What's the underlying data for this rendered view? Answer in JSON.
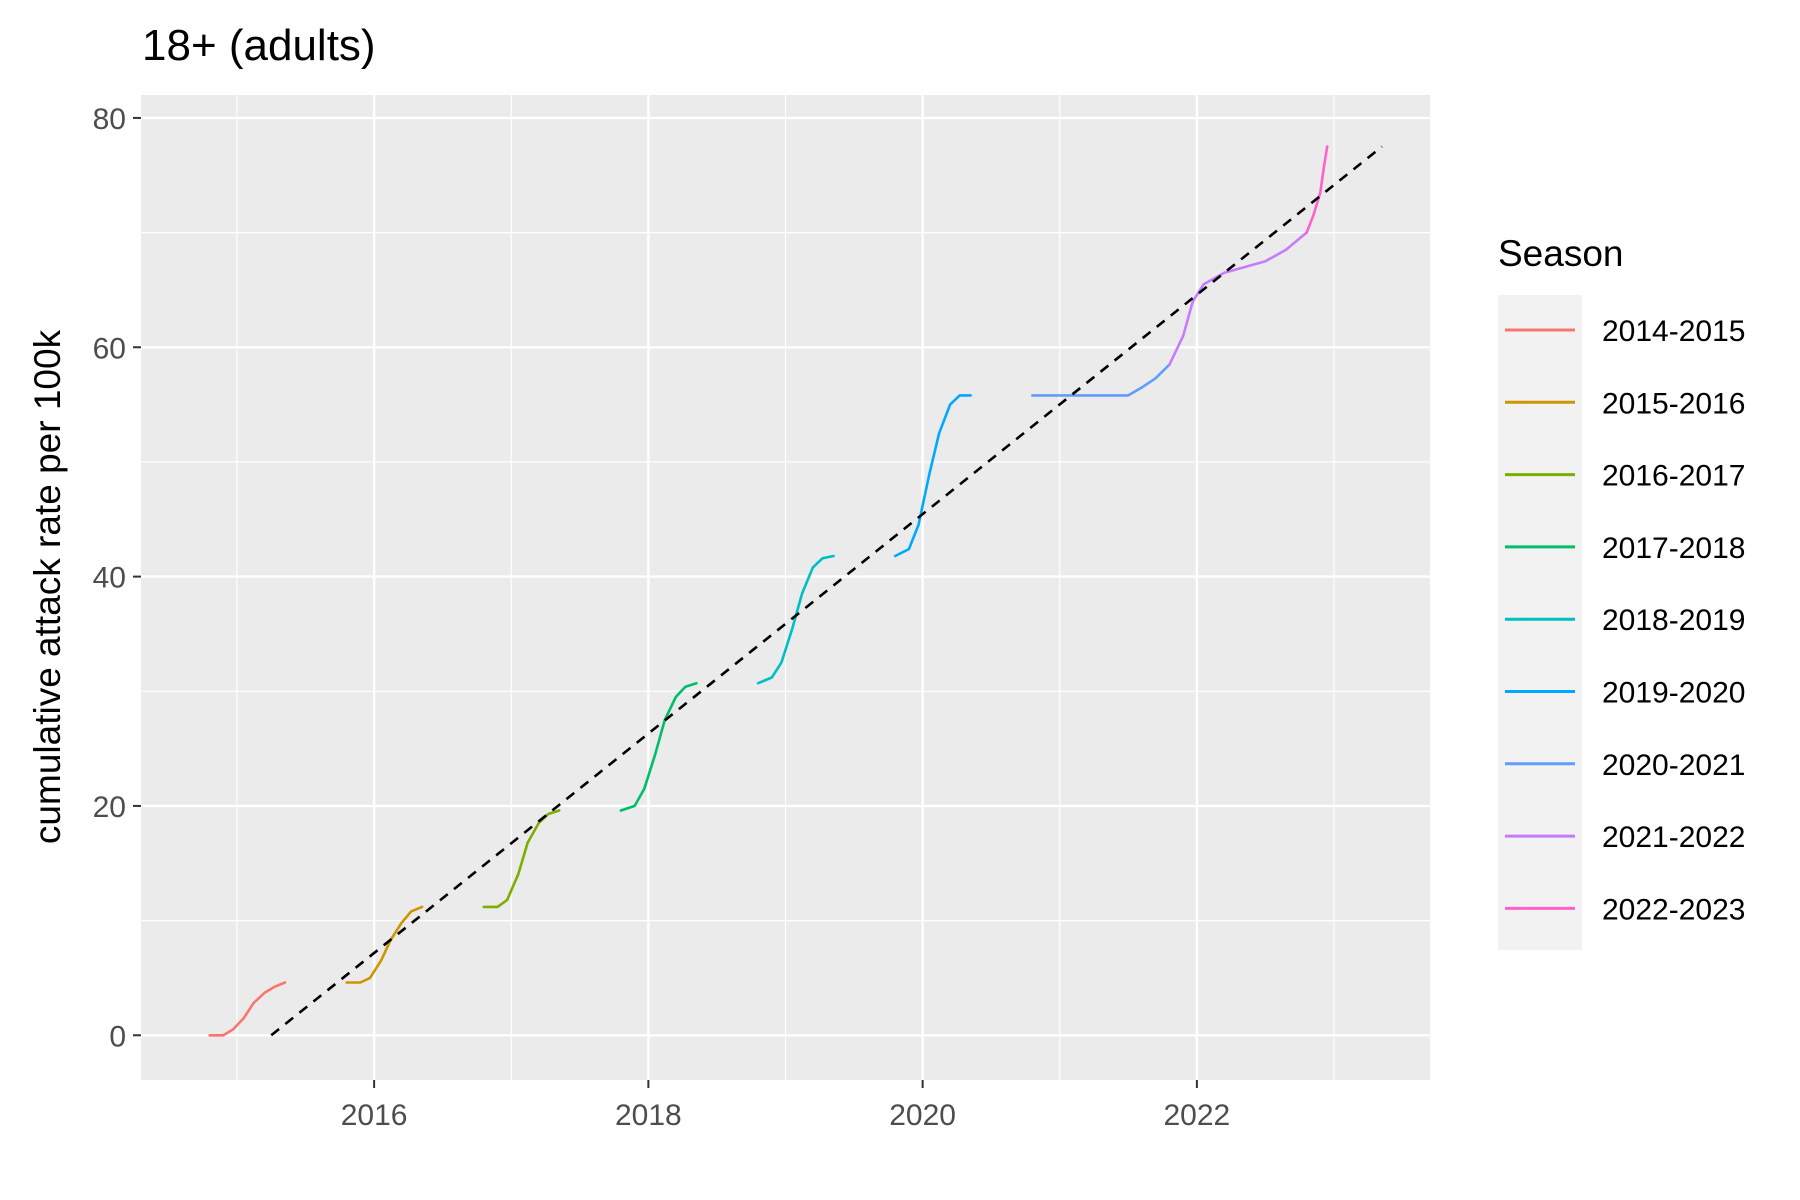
{
  "chart_data": {
    "type": "line",
    "title": "18+ (adults)",
    "xlabel": "",
    "ylabel": "cumulative attack rate per 100k",
    "xlim": [
      2014.3,
      2023.7
    ],
    "ylim": [
      -3.9,
      82
    ],
    "x_ticks": [
      2016,
      2018,
      2020,
      2022
    ],
    "x_tick_labels": [
      "2016",
      "2018",
      "2020",
      "2022"
    ],
    "y_ticks": [
      0,
      20,
      40,
      60,
      80
    ],
    "y_tick_labels": [
      "0",
      "20",
      "40",
      "60",
      "80"
    ],
    "grid": true,
    "legend": {
      "title": "Season",
      "position": "right"
    },
    "series": [
      {
        "name": "2014-2015",
        "color": "#F8766D",
        "x": [
          2014.8,
          2014.9,
          2014.97,
          2015.05,
          2015.12,
          2015.2,
          2015.27,
          2015.35
        ],
        "y": [
          0,
          0,
          0.5,
          1.5,
          2.8,
          3.7,
          4.2,
          4.6
        ]
      },
      {
        "name": "2015-2016",
        "color": "#CD9600",
        "x": [
          2015.8,
          2015.9,
          2015.97,
          2016.05,
          2016.12,
          2016.2,
          2016.27,
          2016.35
        ],
        "y": [
          4.6,
          4.6,
          5.0,
          6.5,
          8.3,
          9.8,
          10.8,
          11.2
        ]
      },
      {
        "name": "2016-2017",
        "color": "#7CAE00",
        "x": [
          2016.8,
          2016.9,
          2016.97,
          2017.05,
          2017.12,
          2017.2,
          2017.27,
          2017.35
        ],
        "y": [
          11.2,
          11.2,
          11.8,
          14.0,
          16.8,
          18.5,
          19.3,
          19.6
        ]
      },
      {
        "name": "2017-2018",
        "color": "#00BE67",
        "x": [
          2017.8,
          2017.9,
          2017.97,
          2018.05,
          2018.12,
          2018.2,
          2018.27,
          2018.35
        ],
        "y": [
          19.6,
          20.0,
          21.5,
          24.5,
          27.5,
          29.5,
          30.4,
          30.7
        ]
      },
      {
        "name": "2018-2019",
        "color": "#00BFC4",
        "x": [
          2018.8,
          2018.9,
          2018.97,
          2019.05,
          2019.12,
          2019.2,
          2019.27,
          2019.35
        ],
        "y": [
          30.7,
          31.2,
          32.5,
          35.5,
          38.5,
          40.8,
          41.6,
          41.8
        ]
      },
      {
        "name": "2019-2020",
        "color": "#00A9FF",
        "x": [
          2019.8,
          2019.9,
          2019.97,
          2020.05,
          2020.12,
          2020.2,
          2020.27,
          2020.35
        ],
        "y": [
          41.8,
          42.4,
          44.5,
          49.0,
          52.5,
          55.0,
          55.8,
          55.8
        ]
      },
      {
        "name": "2020-2021",
        "color": "#619CFF",
        "x": [
          2020.8,
          2021.0,
          2021.2,
          2021.4,
          2021.5,
          2021.6,
          2021.7,
          2021.8
        ],
        "y": [
          55.8,
          55.8,
          55.8,
          55.8,
          55.8,
          56.5,
          57.3,
          58.5
        ]
      },
      {
        "name": "2021-2022",
        "color": "#C77CFF",
        "x": [
          2021.8,
          2021.9,
          2021.97,
          2022.05,
          2022.2,
          2022.35,
          2022.5,
          2022.65,
          2022.8
        ],
        "y": [
          58.5,
          61.0,
          64.0,
          65.5,
          66.5,
          67.0,
          67.5,
          68.5,
          70.0
        ]
      },
      {
        "name": "2022-2023",
        "color": "#FF61CC",
        "x": [
          2022.8,
          2022.85,
          2022.9,
          2022.93,
          2022.95
        ],
        "y": [
          70.0,
          71.5,
          73.5,
          76.0,
          77.5
        ]
      }
    ],
    "trend": {
      "style": "dashed",
      "color": "#000000",
      "x": [
        2015.25,
        2023.35
      ],
      "y": [
        0,
        77.5
      ]
    }
  }
}
